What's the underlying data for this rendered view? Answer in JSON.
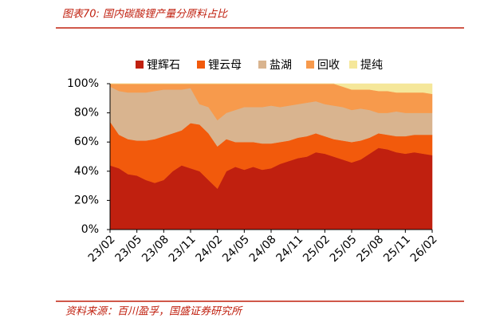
{
  "chart_data": {
    "type": "stacked_area",
    "title": "图表70:  国内碳酸锂产量分原料占比",
    "source": "资料来源：百川盈孚，国盛证券研究所",
    "categories": [
      "23/02",
      null,
      null,
      "23/05",
      null,
      null,
      "23/08",
      null,
      null,
      "23/11",
      null,
      null,
      "24/02",
      null,
      null,
      "24/05",
      null,
      null,
      "24/08",
      null,
      null,
      "24/11",
      null,
      null,
      "25/02",
      null,
      null,
      "25/05",
      null,
      null,
      "25/08",
      null,
      null,
      "25/11",
      null,
      null,
      "26/02"
    ],
    "ylim": [
      0,
      100
    ],
    "yticks": [
      {
        "value": 0,
        "label": "0%"
      },
      {
        "value": 20,
        "label": "20%"
      },
      {
        "value": 40,
        "label": "40%"
      },
      {
        "value": 60,
        "label": "60%"
      },
      {
        "value": 80,
        "label": "80%"
      },
      {
        "value": 100,
        "label": "100%"
      }
    ],
    "series": [
      {
        "name": "锂辉石",
        "color": "#c0200f",
        "values": [
          44,
          42,
          38,
          37,
          34,
          32,
          34,
          40,
          44,
          42,
          40,
          34,
          28,
          40,
          43,
          41,
          43,
          41,
          42,
          45,
          47,
          49,
          50,
          53,
          52,
          50,
          48,
          46,
          48,
          52,
          56,
          55,
          53,
          52,
          53,
          52,
          51
        ]
      },
      {
        "name": "锂云母",
        "color": "#f25a0c",
        "values": [
          30,
          23,
          24,
          24,
          27,
          30,
          30,
          26,
          24,
          31,
          32,
          32,
          29,
          22,
          17,
          19,
          17,
          18,
          17,
          15,
          14,
          14,
          14,
          13,
          12,
          12,
          13,
          14,
          13,
          11,
          10,
          10,
          11,
          12,
          12,
          13,
          14
        ]
      },
      {
        "name": "盐湖",
        "color": "#d9b48f",
        "values": [
          24,
          30,
          32,
          33,
          33,
          33,
          32,
          30,
          28,
          24,
          14,
          18,
          18,
          18,
          22,
          24,
          24,
          25,
          26,
          24,
          24,
          23,
          23,
          22,
          22,
          23,
          23,
          22,
          22,
          19,
          14,
          15,
          17,
          16,
          15,
          15,
          15
        ]
      },
      {
        "name": "回收",
        "color": "#f79a4c",
        "values": [
          2,
          5,
          6,
          6,
          6,
          5,
          4,
          4,
          4,
          3,
          14,
          16,
          25,
          20,
          18,
          16,
          16,
          16,
          15,
          16,
          15,
          14,
          13,
          12,
          14,
          15,
          14,
          14,
          13,
          14,
          15,
          15,
          13,
          14,
          14,
          14,
          13
        ]
      },
      {
        "name": "提纯",
        "color": "#f5e79a",
        "values": [
          0,
          0,
          0,
          0,
          0,
          0,
          0,
          0,
          0,
          0,
          0,
          0,
          0,
          0,
          0,
          0,
          0,
          0,
          0,
          0,
          0,
          0,
          0,
          0,
          0,
          0,
          2,
          4,
          4,
          4,
          5,
          5,
          6,
          6,
          6,
          6,
          7
        ]
      }
    ]
  }
}
